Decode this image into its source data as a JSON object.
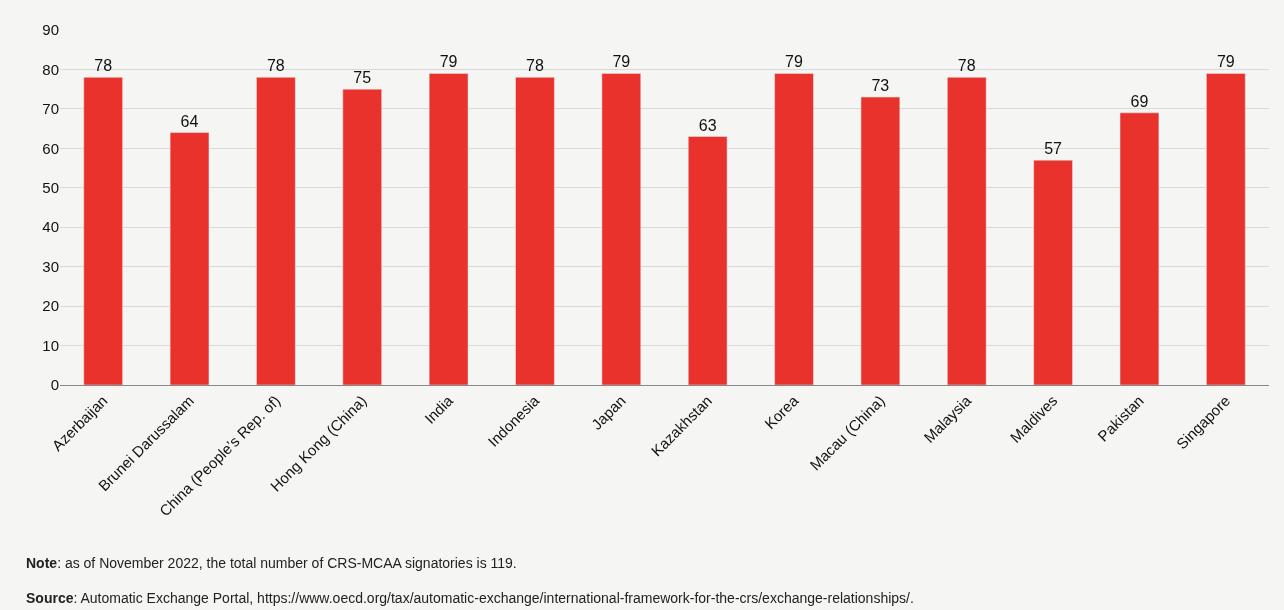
{
  "chart_data": {
    "type": "bar",
    "categories": [
      "Azerbaijan",
      "Brunei Darussalam",
      "China (People’s Rep. of)",
      "Hong Kong (China)",
      "India",
      "Indonesia",
      "Japan",
      "Kazakhstan",
      "Korea",
      "Macau (China)",
      "Malaysia",
      "Maldives",
      "Pakistan",
      "Singapore"
    ],
    "values": [
      78,
      64,
      78,
      75,
      79,
      78,
      79,
      63,
      79,
      73,
      78,
      57,
      69,
      79
    ],
    "color": "#e8322b",
    "ylim": [
      0,
      90
    ],
    "yticks": [
      0,
      10,
      20,
      30,
      40,
      50,
      60,
      70,
      80,
      90
    ],
    "grid": "y",
    "data_labels": true,
    "annotations": [
      "Note: as of November 2022, the total number of CRS-MCAA signatories is 119.",
      "Source: Automatic Exchange Portal, https://www.oecd.org/tax/automatic-exchange/international-framework-for-the-crs/exchange-relationships/."
    ]
  }
}
